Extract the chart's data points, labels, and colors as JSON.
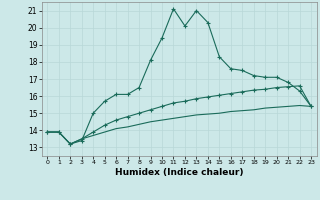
{
  "xlabel": "Humidex (Indice chaleur)",
  "bg_color": "#cce8e8",
  "line_color": "#1a6b5a",
  "grid_color": "#b8d8d8",
  "xlim": [
    -0.5,
    23.5
  ],
  "ylim": [
    12.5,
    21.5
  ],
  "xticks": [
    0,
    1,
    2,
    3,
    4,
    5,
    6,
    7,
    8,
    9,
    10,
    11,
    12,
    13,
    14,
    15,
    16,
    17,
    18,
    19,
    20,
    21,
    22,
    23
  ],
  "yticks": [
    13,
    14,
    15,
    16,
    17,
    18,
    19,
    20,
    21
  ],
  "curve1_x": [
    0,
    1,
    2,
    3,
    4,
    5,
    6,
    7,
    8,
    9,
    10,
    11,
    12,
    13,
    14,
    15,
    16,
    17,
    18,
    19,
    20,
    21,
    22,
    23
  ],
  "curve1_y": [
    13.9,
    13.9,
    13.2,
    13.4,
    15.0,
    15.7,
    16.1,
    16.1,
    16.5,
    18.1,
    19.4,
    21.1,
    20.1,
    21.0,
    20.3,
    18.3,
    17.6,
    17.5,
    17.2,
    17.1,
    17.1,
    16.8,
    16.3,
    15.4
  ],
  "curve2_x": [
    0,
    1,
    2,
    3,
    4,
    5,
    6,
    7,
    8,
    9,
    10,
    11,
    12,
    13,
    14,
    15,
    16,
    17,
    18,
    19,
    20,
    21,
    22,
    23
  ],
  "curve2_y": [
    13.9,
    13.9,
    13.2,
    13.5,
    13.9,
    14.3,
    14.6,
    14.8,
    15.0,
    15.2,
    15.4,
    15.6,
    15.7,
    15.85,
    15.95,
    16.05,
    16.15,
    16.25,
    16.35,
    16.4,
    16.5,
    16.55,
    16.6,
    15.4
  ],
  "curve3_x": [
    0,
    1,
    2,
    3,
    4,
    5,
    6,
    7,
    8,
    9,
    10,
    11,
    12,
    13,
    14,
    15,
    16,
    17,
    18,
    19,
    20,
    21,
    22,
    23
  ],
  "curve3_y": [
    13.9,
    13.9,
    13.2,
    13.5,
    13.7,
    13.9,
    14.1,
    14.2,
    14.35,
    14.5,
    14.6,
    14.7,
    14.8,
    14.9,
    14.95,
    15.0,
    15.1,
    15.15,
    15.2,
    15.3,
    15.35,
    15.4,
    15.45,
    15.4
  ]
}
